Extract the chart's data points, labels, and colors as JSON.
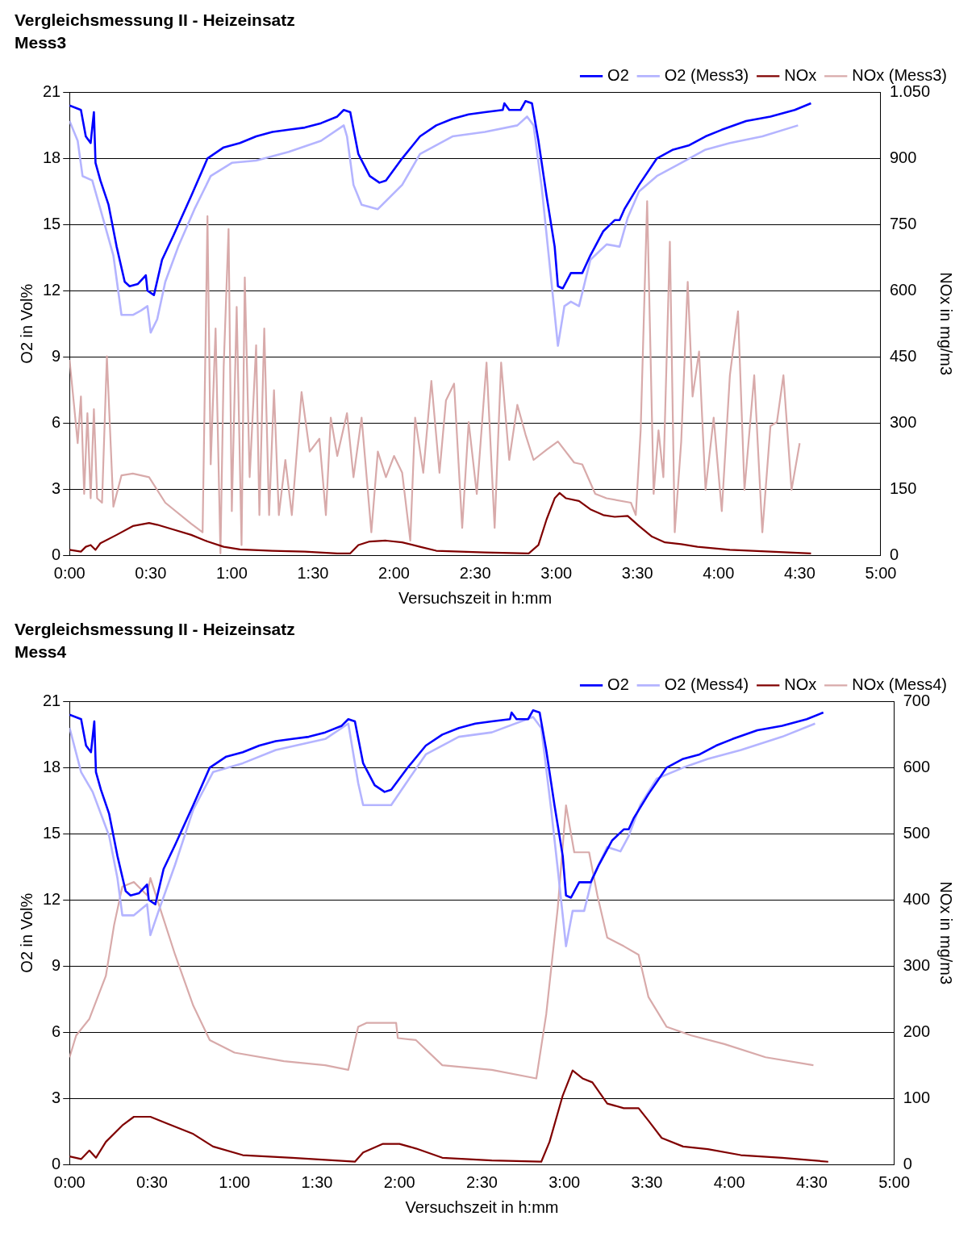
{
  "chart_data": [
    {
      "type": "line",
      "title": "Vergleichsmessung II - Heizeinsatz",
      "subtitle": "Mess3",
      "xlabel": "Versuchszeit in h:mm",
      "ylabel": "O2 in Vol%",
      "y2label": "NOx in mg/m3",
      "xlim": [
        0,
        5
      ],
      "xticks": [
        {
          "value": 0,
          "label": "0:00"
        },
        {
          "value": 0.5,
          "label": "0:30"
        },
        {
          "value": 1,
          "label": "1:00"
        },
        {
          "value": 1.5,
          "label": "1:30"
        },
        {
          "value": 2,
          "label": "2:00"
        },
        {
          "value": 2.5,
          "label": "2:30"
        },
        {
          "value": 3,
          "label": "3:00"
        },
        {
          "value": 3.5,
          "label": "3:30"
        },
        {
          "value": 4,
          "label": "4:00"
        },
        {
          "value": 4.5,
          "label": "4:30"
        },
        {
          "value": 5,
          "label": "5:00"
        }
      ],
      "ylim": [
        0,
        21
      ],
      "yticks": [
        0,
        3,
        6,
        9,
        12,
        15,
        18,
        21
      ],
      "y2lim": [
        0,
        1050
      ],
      "y2ticks": [
        0,
        150,
        300,
        450,
        600,
        750,
        900,
        {
          "value": 1050,
          "label": "1.050"
        }
      ],
      "grid": "y",
      "legend": "top right",
      "series": [
        {
          "name": "O2",
          "color": "#0000ff",
          "x": [
            0,
            0.07,
            0.1,
            0.13,
            0.15,
            0.16,
            0.19,
            0.24,
            0.29,
            0.34,
            0.37,
            0.42,
            0.47,
            0.48,
            0.52,
            0.57,
            0.64,
            0.75,
            0.85,
            0.95,
            1.05,
            1.15,
            1.25,
            1.35,
            1.45,
            1.55,
            1.65,
            1.69,
            1.73,
            1.78,
            1.85,
            1.91,
            1.95,
            2.05,
            2.16,
            2.26,
            2.36,
            2.46,
            2.56,
            2.67,
            2.68,
            2.71,
            2.78,
            2.81,
            2.85,
            2.89,
            2.94,
            2.99,
            3.01,
            3.04,
            3.09,
            3.16,
            3.21,
            3.29,
            3.36,
            3.39,
            3.42,
            3.51,
            3.62,
            3.72,
            3.82,
            3.92,
            4.02,
            4.17,
            4.32,
            4.47,
            4.57
          ],
          "values": [
            20.4,
            20.2,
            19.0,
            18.7,
            20.1,
            17.8,
            17.0,
            15.9,
            14.0,
            12.4,
            12.2,
            12.3,
            12.7,
            12.0,
            11.8,
            13.4,
            14.5,
            16.3,
            18.0,
            18.5,
            18.7,
            19.0,
            19.2,
            19.3,
            19.4,
            19.6,
            19.9,
            20.2,
            20.1,
            18.2,
            17.2,
            16.9,
            17.0,
            18.0,
            19.0,
            19.5,
            19.8,
            20.0,
            20.1,
            20.2,
            20.5,
            20.2,
            20.2,
            20.6,
            20.5,
            18.8,
            16.3,
            14.0,
            12.2,
            12.1,
            12.8,
            12.8,
            13.6,
            14.7,
            15.2,
            15.2,
            15.7,
            16.8,
            18.0,
            18.4,
            18.6,
            19.0,
            19.3,
            19.7,
            19.9,
            20.2,
            20.5
          ]
        },
        {
          "name": "O2 (Mess3)",
          "color": "#b4b4ff",
          "x": [
            0,
            0.05,
            0.08,
            0.14,
            0.19,
            0.27,
            0.32,
            0.39,
            0.44,
            0.48,
            0.5,
            0.54,
            0.59,
            0.67,
            0.77,
            0.87,
            1.0,
            1.15,
            1.35,
            1.55,
            1.69,
            1.71,
            1.75,
            1.8,
            1.9,
            2.05,
            2.16,
            2.36,
            2.56,
            2.76,
            2.82,
            2.86,
            2.91,
            2.97,
            3.01,
            3.05,
            3.09,
            3.14,
            3.21,
            3.31,
            3.39,
            3.44,
            3.51,
            3.62,
            3.77,
            3.92,
            4.07,
            4.27,
            4.49
          ],
          "values": [
            19.7,
            18.8,
            17.2,
            17.0,
            15.7,
            13.6,
            10.9,
            10.9,
            11.1,
            11.3,
            10.1,
            10.7,
            12.4,
            14.0,
            15.7,
            17.2,
            17.8,
            17.9,
            18.3,
            18.8,
            19.5,
            19.0,
            16.8,
            15.9,
            15.7,
            16.8,
            18.2,
            19.0,
            19.2,
            19.5,
            19.9,
            19.5,
            16.7,
            12.4,
            9.5,
            11.3,
            11.5,
            11.3,
            13.4,
            14.1,
            14.0,
            15.3,
            16.5,
            17.2,
            17.8,
            18.4,
            18.7,
            19.0,
            19.5
          ]
        },
        {
          "name": "NOx",
          "color": "#800000",
          "axis": "y2",
          "x": [
            0,
            0.07,
            0.1,
            0.13,
            0.16,
            0.19,
            0.29,
            0.39,
            0.49,
            0.54,
            0.64,
            0.75,
            0.85,
            0.95,
            1.05,
            1.25,
            1.45,
            1.65,
            1.73,
            1.78,
            1.85,
            1.95,
            2.05,
            2.16,
            2.26,
            2.56,
            2.83,
            2.89,
            2.94,
            2.99,
            3.02,
            3.06,
            3.14,
            3.21,
            3.29,
            3.36,
            3.44,
            3.51,
            3.59,
            3.67,
            3.77,
            3.87,
            4.07,
            4.32,
            4.57
          ],
          "values": [
            12,
            8,
            19,
            23,
            12,
            27,
            46,
            66,
            73,
            69,
            58,
            46,
            31,
            19,
            13,
            10,
            8,
            4,
            4,
            23,
            31,
            33,
            29,
            19,
            10,
            6,
            4,
            23,
            81,
            129,
            141,
            129,
            123,
            104,
            91,
            87,
            89,
            66,
            42,
            29,
            25,
            19,
            12,
            8,
            4
          ]
        },
        {
          "name": "NOx (Mess3)",
          "color": "#d8aaaa",
          "axis": "y2",
          "x": [
            0,
            0.03,
            0.05,
            0.07,
            0.09,
            0.11,
            0.13,
            0.15,
            0.17,
            0.2,
            0.23,
            0.27,
            0.32,
            0.39,
            0.49,
            0.59,
            0.75,
            0.82,
            0.85,
            0.87,
            0.9,
            0.93,
            0.95,
            0.98,
            1.0,
            1.03,
            1.06,
            1.08,
            1.11,
            1.15,
            1.17,
            1.2,
            1.23,
            1.26,
            1.29,
            1.33,
            1.37,
            1.43,
            1.48,
            1.54,
            1.58,
            1.61,
            1.65,
            1.71,
            1.75,
            1.8,
            1.86,
            1.9,
            1.95,
            2.0,
            2.05,
            2.1,
            2.13,
            2.18,
            2.23,
            2.28,
            2.32,
            2.37,
            2.42,
            2.46,
            2.51,
            2.57,
            2.62,
            2.66,
            2.71,
            2.76,
            2.81,
            2.86,
            2.94,
            3.01,
            3.11,
            3.16,
            3.24,
            3.31,
            3.46,
            3.49,
            3.52,
            3.56,
            3.6,
            3.63,
            3.66,
            3.7,
            3.73,
            3.77,
            3.81,
            3.84,
            3.88,
            3.92,
            3.97,
            4.02,
            4.07,
            4.12,
            4.16,
            4.22,
            4.27,
            4.32,
            4.36,
            4.4,
            4.45,
            4.5
          ],
          "values": [
            443,
            331,
            254,
            360,
            139,
            322,
            129,
            331,
            129,
            119,
            451,
            110,
            181,
            185,
            177,
            119,
            71,
            52,
            769,
            206,
            514,
            4,
            428,
            740,
            100,
            563,
            23,
            630,
            177,
            476,
            91,
            514,
            91,
            374,
            91,
            216,
            91,
            370,
            235,
            264,
            91,
            312,
            225,
            322,
            177,
            312,
            52,
            235,
            177,
            225,
            187,
            33,
            312,
            187,
            395,
            187,
            351,
            389,
            62,
            302,
            139,
            437,
            62,
            437,
            216,
            341,
            274,
            216,
            239,
            258,
            210,
            206,
            139,
            129,
            119,
            91,
            283,
            803,
            139,
            283,
            177,
            711,
            52,
            258,
            620,
            360,
            462,
            148,
            312,
            100,
            408,
            553,
            148,
            408,
            52,
            293,
            302,
            408,
            148,
            254
          ]
        }
      ]
    },
    {
      "type": "line",
      "title": "Vergleichsmessung II - Heizeinsatz",
      "subtitle": "Mess4",
      "xlabel": "Versuchszeit in h:mm",
      "ylabel": "O2 in Vol%",
      "y2label": "NOx in mg/m3",
      "xlim": [
        0,
        5
      ],
      "xticks": [
        {
          "value": 0,
          "label": "0:00"
        },
        {
          "value": 0.5,
          "label": "0:30"
        },
        {
          "value": 1,
          "label": "1:00"
        },
        {
          "value": 1.5,
          "label": "1:30"
        },
        {
          "value": 2,
          "label": "2:00"
        },
        {
          "value": 2.5,
          "label": "2:30"
        },
        {
          "value": 3,
          "label": "3:00"
        },
        {
          "value": 3.5,
          "label": "3:30"
        },
        {
          "value": 4,
          "label": "4:00"
        },
        {
          "value": 4.5,
          "label": "4:30"
        },
        {
          "value": 5,
          "label": "5:00"
        }
      ],
      "ylim": [
        0,
        21
      ],
      "yticks": [
        0,
        3,
        6,
        9,
        12,
        15,
        18,
        21
      ],
      "y2lim": [
        0,
        700
      ],
      "y2ticks": [
        0,
        100,
        200,
        300,
        400,
        500,
        600,
        700
      ],
      "grid": "y",
      "legend": "top right",
      "series": [
        {
          "name": "O2",
          "color": "#0000ff",
          "x": [
            0,
            0.07,
            0.1,
            0.13,
            0.15,
            0.16,
            0.19,
            0.24,
            0.29,
            0.34,
            0.37,
            0.42,
            0.47,
            0.48,
            0.52,
            0.57,
            0.64,
            0.75,
            0.85,
            0.95,
            1.05,
            1.15,
            1.25,
            1.35,
            1.45,
            1.55,
            1.65,
            1.69,
            1.73,
            1.78,
            1.85,
            1.91,
            1.95,
            2.05,
            2.16,
            2.26,
            2.36,
            2.46,
            2.56,
            2.67,
            2.68,
            2.71,
            2.78,
            2.81,
            2.85,
            2.89,
            2.94,
            2.99,
            3.01,
            3.04,
            3.09,
            3.16,
            3.21,
            3.29,
            3.36,
            3.39,
            3.42,
            3.51,
            3.62,
            3.72,
            3.82,
            3.92,
            4.02,
            4.17,
            4.32,
            4.47,
            4.57
          ],
          "values": [
            20.4,
            20.2,
            19.0,
            18.7,
            20.1,
            17.8,
            17.0,
            15.9,
            14.0,
            12.4,
            12.2,
            12.3,
            12.7,
            12.0,
            11.8,
            13.4,
            14.5,
            16.3,
            18.0,
            18.5,
            18.7,
            19.0,
            19.2,
            19.3,
            19.4,
            19.6,
            19.9,
            20.2,
            20.1,
            18.2,
            17.2,
            16.9,
            17.0,
            18.0,
            19.0,
            19.5,
            19.8,
            20.0,
            20.1,
            20.2,
            20.5,
            20.2,
            20.2,
            20.6,
            20.5,
            18.8,
            16.3,
            14.0,
            12.2,
            12.1,
            12.8,
            12.8,
            13.6,
            14.7,
            15.2,
            15.2,
            15.7,
            16.8,
            18.0,
            18.4,
            18.6,
            19.0,
            19.3,
            19.7,
            19.9,
            20.2,
            20.5
          ]
        },
        {
          "name": "O2 (Mess4)",
          "color": "#b4b4ff",
          "x": [
            0,
            0.07,
            0.14,
            0.24,
            0.29,
            0.32,
            0.39,
            0.47,
            0.49,
            0.54,
            0.64,
            0.75,
            0.87,
            1.05,
            1.25,
            1.55,
            1.69,
            1.75,
            1.78,
            1.95,
            2.05,
            2.16,
            2.36,
            2.56,
            2.81,
            2.86,
            2.92,
            2.96,
            3.01,
            3.05,
            3.12,
            3.17,
            3.26,
            3.34,
            3.39,
            3.46,
            3.56,
            3.72,
            3.87,
            4.07,
            4.32,
            4.52
          ],
          "values": [
            19.8,
            17.8,
            16.9,
            14.9,
            13.0,
            11.3,
            11.3,
            11.8,
            10.4,
            11.5,
            13.6,
            16.1,
            17.8,
            18.2,
            18.8,
            19.3,
            20.0,
            17.3,
            16.3,
            16.3,
            17.4,
            18.6,
            19.4,
            19.6,
            20.3,
            19.8,
            16.1,
            13.4,
            9.9,
            11.5,
            11.5,
            13.0,
            14.4,
            14.2,
            14.9,
            16.3,
            17.5,
            18.0,
            18.4,
            18.8,
            19.4,
            20.0
          ]
        },
        {
          "name": "NOx",
          "color": "#800000",
          "axis": "y2",
          "x": [
            0,
            0.07,
            0.12,
            0.16,
            0.22,
            0.32,
            0.39,
            0.49,
            0.59,
            0.75,
            0.87,
            1.05,
            1.35,
            1.73,
            1.78,
            1.9,
            2.0,
            2.1,
            2.26,
            2.56,
            2.86,
            2.91,
            2.99,
            3.05,
            3.11,
            3.17,
            3.26,
            3.36,
            3.45,
            3.51,
            3.59,
            3.72,
            3.87,
            4.07,
            4.32,
            4.6
          ],
          "values": [
            12,
            8,
            21,
            10,
            34,
            59,
            72,
            72,
            62,
            46,
            27,
            14,
            10,
            4,
            18,
            31,
            31,
            24,
            10,
            6,
            4,
            34,
            104,
            142,
            130,
            124,
            92,
            85,
            85,
            66,
            40,
            27,
            23,
            14,
            10,
            4
          ]
        },
        {
          "name": "NOx (Mess4)",
          "color": "#d8aaaa",
          "axis": "y2",
          "x": [
            0,
            0.04,
            0.12,
            0.22,
            0.27,
            0.32,
            0.39,
            0.47,
            0.49,
            0.54,
            0.64,
            0.75,
            0.85,
            1.0,
            1.3,
            1.55,
            1.69,
            1.75,
            1.8,
            1.98,
            1.99,
            2.1,
            2.26,
            2.56,
            2.83,
            2.89,
            2.96,
            3.01,
            3.06,
            3.15,
            3.2,
            3.26,
            3.36,
            3.45,
            3.51,
            3.62,
            3.77,
            3.97,
            4.22,
            4.51
          ],
          "values": [
            162,
            195,
            220,
            285,
            362,
            420,
            427,
            407,
            433,
            394,
            317,
            240,
            188,
            169,
            156,
            150,
            143,
            208,
            214,
            214,
            191,
            188,
            150,
            143,
            130,
            227,
            388,
            543,
            472,
            472,
            407,
            343,
            330,
            317,
            253,
            208,
            195,
            182,
            162,
            150
          ]
        }
      ]
    }
  ]
}
